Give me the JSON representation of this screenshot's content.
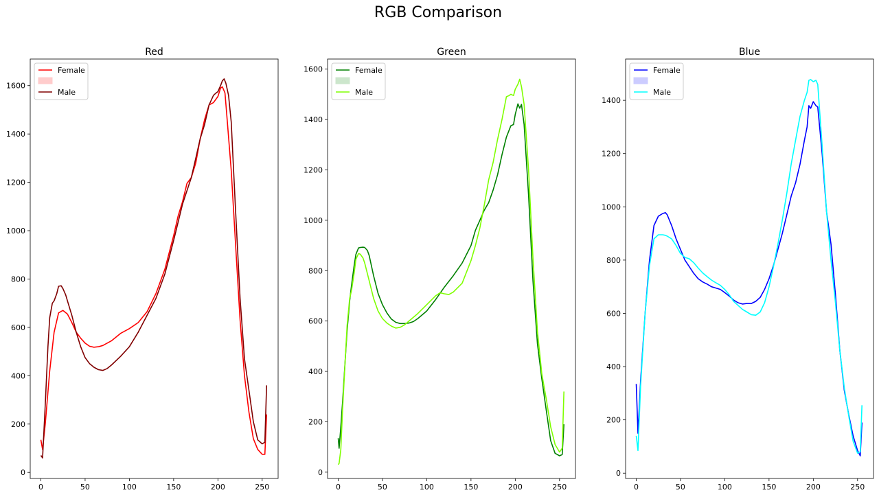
{
  "figure_title": "RGB Comparison",
  "chart_data": [
    {
      "type": "line",
      "title": "Red",
      "xlim": [
        -12,
        268
      ],
      "ylim": [
        -25,
        1710
      ],
      "xticks": [
        0,
        50,
        100,
        150,
        200,
        250
      ],
      "yticks": [
        0,
        200,
        400,
        600,
        800,
        1000,
        1200,
        1400,
        1600
      ],
      "legend": [
        "Female",
        "",
        "Male"
      ],
      "legend_patch_color": "#ffcccc",
      "series": [
        {
          "name": "Female",
          "color": "#ff0000",
          "x": [
            0,
            2,
            5,
            10,
            15,
            20,
            25,
            30,
            35,
            40,
            45,
            50,
            55,
            60,
            65,
            70,
            80,
            90,
            100,
            110,
            120,
            130,
            140,
            150,
            155,
            160,
            165,
            170,
            175,
            180,
            185,
            190,
            195,
            200,
            203,
            205,
            208,
            210,
            215,
            220,
            225,
            230,
            235,
            240,
            245,
            250,
            253,
            255
          ],
          "y": [
            135,
            95,
            200,
            420,
            580,
            660,
            670,
            655,
            620,
            580,
            555,
            535,
            522,
            518,
            520,
            525,
            545,
            575,
            595,
            620,
            665,
            740,
            840,
            980,
            1060,
            1120,
            1195,
            1220,
            1280,
            1380,
            1460,
            1520,
            1530,
            1555,
            1590,
            1595,
            1570,
            1480,
            1250,
            940,
            630,
            400,
            250,
            140,
            95,
            75,
            75,
            240
          ]
        },
        {
          "name": "Male",
          "color": "#800000",
          "x": [
            0,
            2,
            5,
            8,
            10,
            13,
            15,
            18,
            20,
            23,
            25,
            28,
            30,
            35,
            40,
            45,
            50,
            55,
            60,
            65,
            70,
            75,
            80,
            90,
            100,
            110,
            120,
            130,
            140,
            150,
            160,
            170,
            175,
            180,
            185,
            190,
            195,
            198,
            200,
            203,
            205,
            207,
            209,
            212,
            215,
            220,
            225,
            230,
            235,
            240,
            245,
            250,
            253,
            255
          ],
          "y": [
            70,
            60,
            280,
            520,
            640,
            700,
            710,
            740,
            770,
            772,
            760,
            735,
            710,
            650,
            580,
            520,
            475,
            450,
            435,
            425,
            422,
            430,
            445,
            480,
            520,
            580,
            650,
            720,
            820,
            960,
            1110,
            1220,
            1300,
            1380,
            1440,
            1520,
            1560,
            1570,
            1575,
            1600,
            1620,
            1628,
            1610,
            1560,
            1450,
            1080,
            720,
            470,
            340,
            210,
            135,
            118,
            125,
            360
          ]
        }
      ]
    },
    {
      "type": "line",
      "title": "Green",
      "xlim": [
        -12,
        268
      ],
      "ylim": [
        -25,
        1640
      ],
      "xticks": [
        0,
        50,
        100,
        150,
        200,
        250
      ],
      "yticks": [
        0,
        200,
        400,
        600,
        800,
        1000,
        1200,
        1400,
        1600
      ],
      "legend": [
        "Female",
        "",
        "Male"
      ],
      "legend_patch_color": "#cce6cc",
      "series": [
        {
          "name": "Female",
          "color": "#008000",
          "x": [
            0,
            1,
            3,
            5,
            8,
            10,
            13,
            15,
            18,
            20,
            23,
            25,
            28,
            30,
            33,
            35,
            40,
            45,
            50,
            55,
            60,
            65,
            70,
            75,
            80,
            85,
            90,
            95,
            100,
            110,
            120,
            130,
            140,
            150,
            155,
            160,
            165,
            170,
            175,
            180,
            185,
            190,
            195,
            198,
            200,
            203,
            205,
            207,
            210,
            215,
            220,
            225,
            230,
            235,
            240,
            245,
            250,
            253,
            255
          ],
          "y": [
            135,
            95,
            180,
            280,
            450,
            560,
            680,
            740,
            820,
            865,
            890,
            892,
            893,
            892,
            880,
            860,
            780,
            710,
            665,
            632,
            608,
            595,
            590,
            590,
            592,
            598,
            610,
            625,
            640,
            685,
            735,
            780,
            830,
            900,
            960,
            1000,
            1040,
            1070,
            1120,
            1180,
            1260,
            1330,
            1375,
            1380,
            1420,
            1462,
            1445,
            1460,
            1380,
            1100,
            760,
            510,
            370,
            245,
            125,
            75,
            65,
            70,
            190
          ]
        },
        {
          "name": "Male",
          "color": "#7fff00",
          "x": [
            0,
            1,
            3,
            5,
            8,
            10,
            13,
            15,
            18,
            20,
            23,
            25,
            28,
            30,
            35,
            40,
            45,
            50,
            55,
            60,
            65,
            70,
            75,
            80,
            85,
            90,
            100,
            110,
            115,
            120,
            125,
            130,
            140,
            150,
            155,
            160,
            165,
            170,
            175,
            180,
            185,
            190,
            193,
            195,
            198,
            200,
            203,
            205,
            207,
            210,
            215,
            220,
            225,
            230,
            235,
            240,
            245,
            250,
            253,
            255
          ],
          "y": [
            30,
            35,
            90,
            250,
            450,
            580,
            690,
            720,
            790,
            845,
            868,
            865,
            850,
            830,
            760,
            690,
            640,
            610,
            592,
            580,
            572,
            575,
            585,
            600,
            615,
            630,
            665,
            700,
            712,
            708,
            705,
            715,
            750,
            840,
            900,
            970,
            1060,
            1160,
            1230,
            1320,
            1400,
            1490,
            1495,
            1500,
            1495,
            1520,
            1540,
            1560,
            1530,
            1460,
            1200,
            850,
            560,
            390,
            290,
            180,
            110,
            80,
            95,
            320
          ]
        }
      ]
    },
    {
      "type": "line",
      "title": "Blue",
      "xlim": [
        -12,
        268
      ],
      "ylim": [
        -20,
        1555
      ],
      "xticks": [
        0,
        50,
        100,
        150,
        200,
        250
      ],
      "yticks": [
        0,
        200,
        400,
        600,
        800,
        1000,
        1200,
        1400
      ],
      "legend": [
        "Female",
        "",
        "Male"
      ],
      "legend_patch_color": "#ccccff",
      "series": [
        {
          "name": "Female",
          "color": "#0000ff",
          "x": [
            0,
            2,
            5,
            10,
            15,
            20,
            25,
            30,
            33,
            35,
            40,
            45,
            50,
            55,
            60,
            65,
            70,
            75,
            80,
            85,
            90,
            95,
            100,
            105,
            110,
            115,
            120,
            125,
            130,
            135,
            140,
            145,
            150,
            155,
            160,
            165,
            170,
            175,
            180,
            185,
            190,
            193,
            195,
            197,
            200,
            203,
            205,
            210,
            215,
            220,
            225,
            230,
            235,
            240,
            245,
            250,
            253,
            255
          ],
          "y": [
            335,
            150,
            350,
            600,
            800,
            930,
            965,
            975,
            978,
            970,
            930,
            880,
            840,
            800,
            775,
            750,
            730,
            718,
            710,
            700,
            695,
            690,
            678,
            665,
            650,
            640,
            635,
            637,
            637,
            645,
            660,
            690,
            730,
            780,
            840,
            900,
            970,
            1040,
            1090,
            1160,
            1250,
            1300,
            1380,
            1370,
            1395,
            1380,
            1375,
            1200,
            980,
            860,
            670,
            460,
            310,
            220,
            140,
            85,
            65,
            190
          ]
        },
        {
          "name": "Male",
          "color": "#00ffff",
          "x": [
            0,
            2,
            5,
            10,
            15,
            20,
            25,
            30,
            33,
            35,
            40,
            45,
            50,
            55,
            60,
            65,
            70,
            75,
            80,
            85,
            90,
            95,
            100,
            105,
            110,
            115,
            120,
            125,
            130,
            135,
            140,
            145,
            150,
            155,
            160,
            165,
            170,
            175,
            180,
            185,
            190,
            193,
            195,
            197,
            200,
            203,
            205,
            210,
            215,
            220,
            225,
            230,
            235,
            240,
            245,
            250,
            253,
            255
          ],
          "y": [
            140,
            85,
            330,
            600,
            780,
            880,
            895,
            895,
            893,
            890,
            880,
            855,
            825,
            810,
            805,
            790,
            770,
            752,
            738,
            725,
            715,
            705,
            690,
            670,
            645,
            630,
            615,
            605,
            595,
            593,
            605,
            640,
            700,
            775,
            860,
            950,
            1050,
            1160,
            1250,
            1340,
            1400,
            1430,
            1475,
            1478,
            1470,
            1475,
            1460,
            1230,
            980,
            800,
            640,
            460,
            320,
            215,
            120,
            75,
            80,
            255
          ]
        }
      ]
    }
  ]
}
